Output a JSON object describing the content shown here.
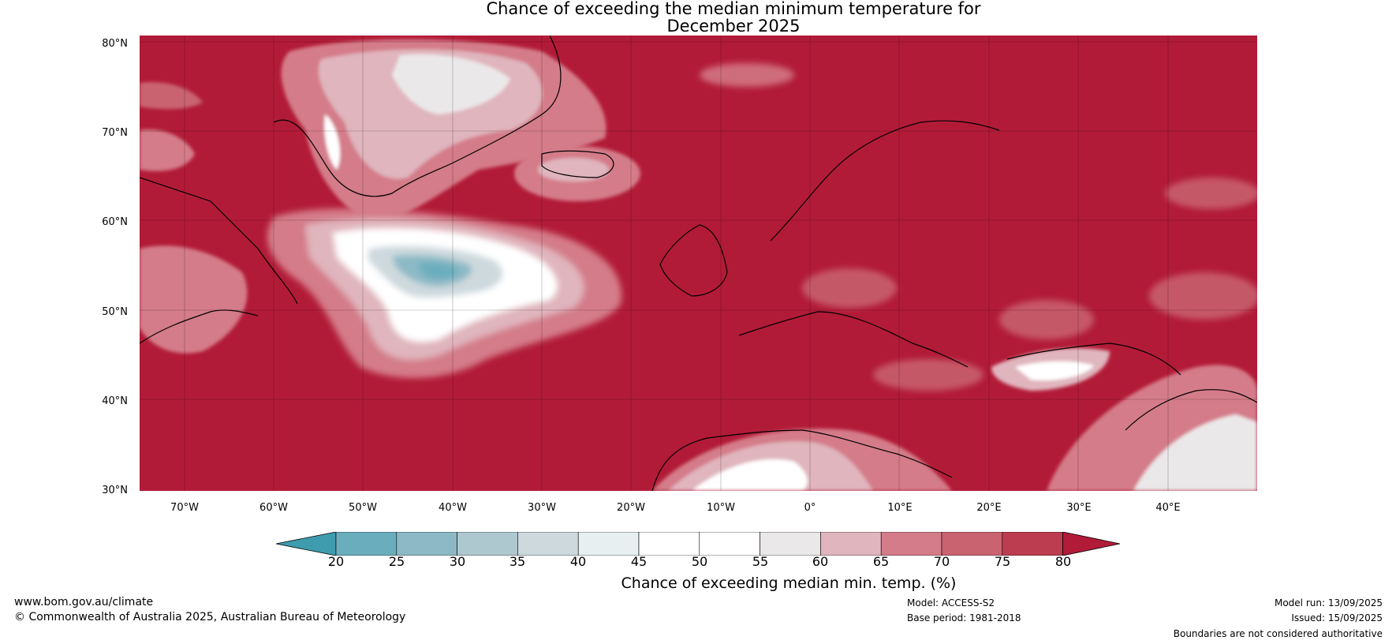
{
  "title": {
    "line1": "Chance of exceeding the median minimum temperature for",
    "line2": "December 2025"
  },
  "map": {
    "latitude_labels": [
      "80°N",
      "70°N",
      "60°N",
      "50°N",
      "40°N",
      "30°N"
    ],
    "latitude_values": [
      80,
      70,
      60,
      50,
      40,
      30
    ],
    "longitude_labels": [
      "70°W",
      "60°W",
      "50°W",
      "40°W",
      "30°W",
      "20°W",
      "10°W",
      "0°",
      "10°E",
      "20°E",
      "30°E",
      "40°E"
    ],
    "longitude_values": [
      -70,
      -60,
      -50,
      -40,
      -30,
      -20,
      -10,
      0,
      10,
      20,
      30,
      40
    ],
    "extent": {
      "lon_min": -75,
      "lon_max": 50,
      "lat_min": 30,
      "lat_max": 81
    },
    "grid": true,
    "dominant_color": "#b21b38"
  },
  "colorbar": {
    "ticks": [
      "20",
      "25",
      "30",
      "35",
      "40",
      "45",
      "50",
      "55",
      "60",
      "65",
      "70",
      "75",
      "80"
    ],
    "colors": [
      "#3e9cae",
      "#6aaebd",
      "#8db9c6",
      "#aec8d0",
      "#cdd9dd",
      "#e8eff0",
      "#ffffff",
      "#ffffff",
      "#ebe8ea",
      "#e0b5bd",
      "#d47c89",
      "#c9636f",
      "#bc3d4f",
      "#b21b38"
    ],
    "label": "Chance of exceeding median min. temp. (%)"
  },
  "footer": {
    "url": "www.bom.gov.au/climate",
    "copyright": "© Commonwealth of Australia 2025, Australian Bureau of Meteorology",
    "model": "Model: ACCESS-S2",
    "base_period": "Base period: 1981-2018",
    "model_run": "Model run: 13/09/2025",
    "issued": "Issued: 15/09/2025",
    "disclaimer": "Boundaries are not considered authoritative"
  }
}
